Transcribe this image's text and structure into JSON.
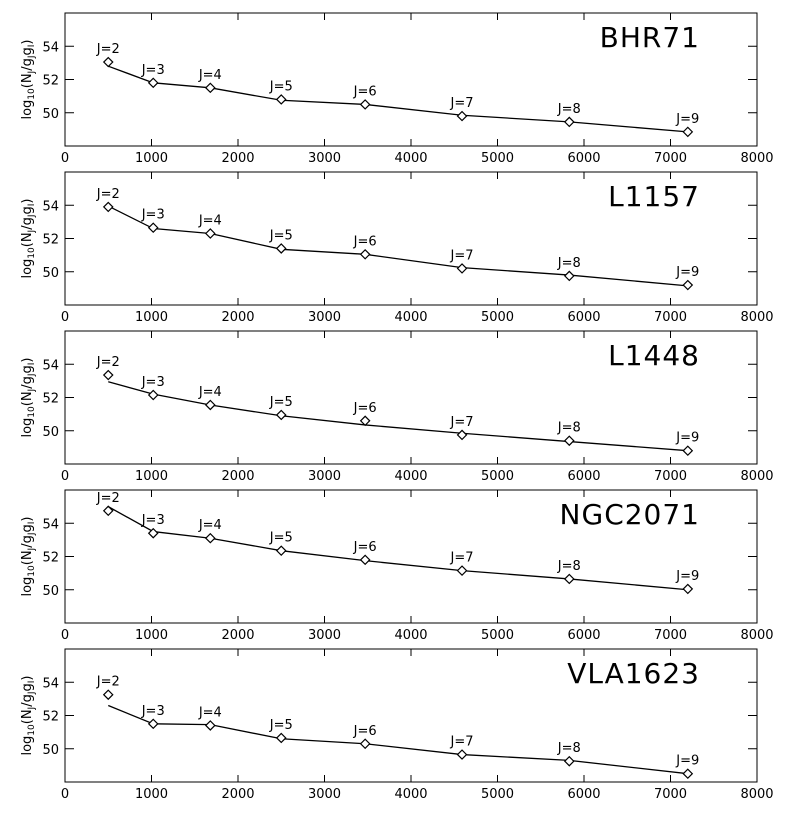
{
  "chart_data": [
    {
      "type": "scatter",
      "title": "BHR71",
      "ylabel": [
        {
          "text": "log"
        },
        {
          "text": "10",
          "sub": true
        },
        {
          "text": "(N"
        },
        {
          "text": "J",
          "sub": true
        },
        {
          "text": "/g"
        },
        {
          "text": "J",
          "sub": true
        },
        {
          "text": "g"
        },
        {
          "text": "I",
          "sub": true
        },
        {
          "text": ")"
        }
      ],
      "x": [
        500,
        1020,
        1680,
        2500,
        3470,
        4590,
        5830,
        7200
      ],
      "values": [
        53.05,
        51.8,
        51.5,
        50.8,
        50.5,
        49.8,
        49.45,
        48.85
      ],
      "point_labels": [
        "J=2",
        "J=3",
        "J=4",
        "J=5",
        "J=6",
        "J=7",
        "J=8",
        "J=9"
      ],
      "fit": [
        52.8,
        51.8,
        51.5,
        50.75,
        50.5,
        49.85,
        49.45,
        48.85
      ],
      "color": "#000000",
      "xlim": [
        0,
        8000
      ],
      "xticks": [
        0,
        1000,
        2000,
        3000,
        4000,
        5000,
        6000,
        7000,
        8000
      ],
      "ylim": [
        48,
        56
      ],
      "yticks": [
        50,
        52,
        54
      ]
    },
    {
      "type": "scatter",
      "title": "L1157",
      "ylabel": [
        {
          "text": "log"
        },
        {
          "text": "10",
          "sub": true
        },
        {
          "text": "(N"
        },
        {
          "text": "J",
          "sub": true
        },
        {
          "text": "/g"
        },
        {
          "text": "J",
          "sub": true
        },
        {
          "text": "g"
        },
        {
          "text": "I",
          "sub": true
        },
        {
          "text": ")"
        }
      ],
      "x": [
        500,
        1020,
        1680,
        2500,
        3470,
        4590,
        5830,
        7200
      ],
      "values": [
        53.9,
        52.65,
        52.3,
        51.4,
        51.05,
        50.2,
        49.75,
        49.2
      ],
      "point_labels": [
        "J=2",
        "J=3",
        "J=4",
        "J=5",
        "J=6",
        "J=7",
        "J=8",
        "J=9"
      ],
      "fit": [
        53.95,
        52.6,
        52.3,
        51.35,
        51.05,
        50.25,
        49.8,
        49.15
      ],
      "color": "#000000",
      "xlim": [
        0,
        8000
      ],
      "xticks": [
        0,
        1000,
        2000,
        3000,
        4000,
        5000,
        6000,
        7000,
        8000
      ],
      "ylim": [
        48,
        56
      ],
      "yticks": [
        50,
        52,
        54
      ]
    },
    {
      "type": "scatter",
      "title": "L1448",
      "ylabel": [
        {
          "text": "log"
        },
        {
          "text": "10",
          "sub": true
        },
        {
          "text": "(N"
        },
        {
          "text": "J",
          "sub": true
        },
        {
          "text": "/g"
        },
        {
          "text": "J",
          "sub": true
        },
        {
          "text": "g"
        },
        {
          "text": "I",
          "sub": true
        },
        {
          "text": ")"
        }
      ],
      "x": [
        500,
        1020,
        1680,
        2500,
        3470,
        4590,
        5830,
        7200
      ],
      "values": [
        53.35,
        52.15,
        51.55,
        50.95,
        50.6,
        49.75,
        49.4,
        48.8
      ],
      "point_labels": [
        "J=2",
        "J=3",
        "J=4",
        "J=5",
        "J=6",
        "J=7",
        "J=8",
        "J=9"
      ],
      "fit": [
        52.95,
        52.2,
        51.55,
        50.9,
        50.35,
        49.85,
        49.35,
        48.8
      ],
      "color": "#000000",
      "xlim": [
        0,
        8000
      ],
      "xticks": [
        0,
        1000,
        2000,
        3000,
        4000,
        5000,
        6000,
        7000,
        8000
      ],
      "ylim": [
        48,
        56
      ],
      "yticks": [
        50,
        52,
        54
      ]
    },
    {
      "type": "scatter",
      "title": "NGC2071",
      "ylabel": [
        {
          "text": "log"
        },
        {
          "text": "10",
          "sub": true
        },
        {
          "text": "(N"
        },
        {
          "text": "J",
          "sub": true
        },
        {
          "text": "/g"
        },
        {
          "text": "J",
          "sub": true
        },
        {
          "text": "g"
        },
        {
          "text": "I",
          "sub": true
        },
        {
          "text": ")"
        }
      ],
      "x": [
        500,
        1020,
        1680,
        2500,
        3470,
        4590,
        5830,
        7200
      ],
      "values": [
        54.75,
        53.4,
        53.1,
        52.35,
        51.8,
        51.15,
        50.65,
        50.05
      ],
      "point_labels": [
        "J=2",
        "J=3",
        "J=4",
        "J=5",
        "J=6",
        "J=7",
        "J=8",
        "J=9"
      ],
      "fit": [
        55.0,
        53.5,
        53.1,
        52.35,
        51.75,
        51.15,
        50.65,
        50.0
      ],
      "color": "#000000",
      "xlim": [
        0,
        8000
      ],
      "xticks": [
        0,
        1000,
        2000,
        3000,
        4000,
        5000,
        6000,
        7000,
        8000
      ],
      "ylim": [
        48,
        56
      ],
      "yticks": [
        50,
        52,
        54
      ]
    },
    {
      "type": "scatter",
      "title": "VLA1623",
      "ylabel": [
        {
          "text": "log"
        },
        {
          "text": "10",
          "sub": true
        },
        {
          "text": "(N"
        },
        {
          "text": "J",
          "sub": true
        },
        {
          "text": "/g"
        },
        {
          "text": "J",
          "sub": true
        },
        {
          "text": "g"
        },
        {
          "text": "I",
          "sub": true
        },
        {
          "text": ")"
        }
      ],
      "x": [
        500,
        1020,
        1680,
        2500,
        3470,
        4590,
        5830,
        7200
      ],
      "values": [
        53.25,
        51.5,
        51.4,
        50.65,
        50.3,
        49.65,
        49.25,
        48.5
      ],
      "point_labels": [
        "J=2",
        "J=3",
        "J=4",
        "J=5",
        "J=6",
        "J=7",
        "J=8",
        "J=9"
      ],
      "fit": [
        52.6,
        51.5,
        51.45,
        50.6,
        50.3,
        49.65,
        49.3,
        48.5
      ],
      "color": "#000000",
      "xlim": [
        0,
        8000
      ],
      "xticks": [
        0,
        1000,
        2000,
        3000,
        4000,
        5000,
        6000,
        7000,
        8000
      ],
      "ylim": [
        48,
        56
      ],
      "yticks": [
        50,
        52,
        54
      ]
    }
  ]
}
